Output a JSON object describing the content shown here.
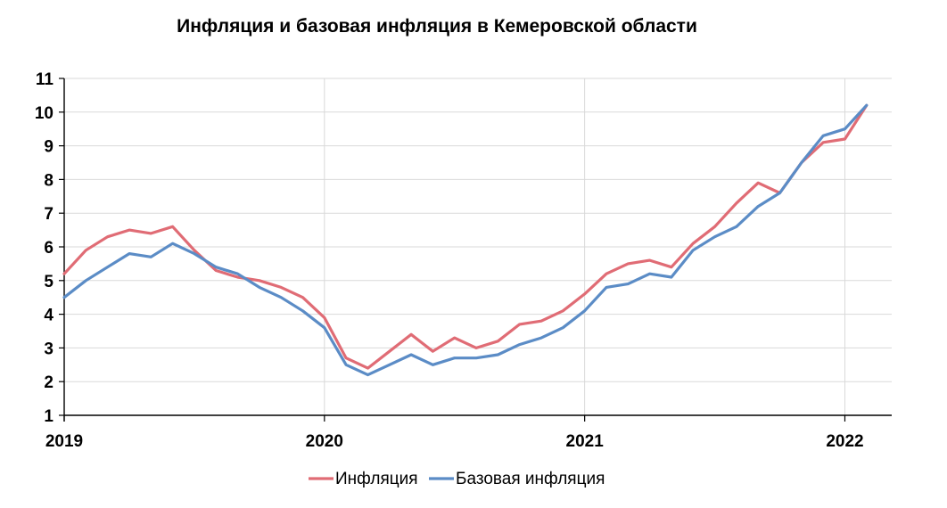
{
  "chart_data": {
    "type": "line",
    "title": "Инфляция и базовая инфляция в Кемеровской области",
    "x_tick_labels": [
      "2019",
      "2020",
      "2021",
      "2022"
    ],
    "y_tick_labels": [
      "1",
      "2",
      "3",
      "4",
      "5",
      "6",
      "7",
      "8",
      "9",
      "10",
      "11"
    ],
    "ylim": [
      1,
      11
    ],
    "grid": "horizontal and yearly vertical",
    "legend_position": "bottom-center",
    "x_start": "2019-01",
    "x_end": "2022-01",
    "series": [
      {
        "name": "Инфляция",
        "color": "#e06c75",
        "values": [
          5.2,
          5.9,
          6.3,
          6.5,
          6.4,
          6.6,
          5.9,
          5.3,
          5.1,
          5.0,
          4.8,
          4.5,
          3.9,
          2.7,
          2.4,
          2.9,
          3.4,
          2.9,
          3.3,
          3.0,
          3.2,
          3.7,
          3.8,
          4.1,
          4.6,
          5.2,
          5.5,
          5.6,
          5.4,
          6.1,
          6.6,
          7.3,
          7.9,
          7.6,
          8.5,
          9.1,
          9.2,
          10.2
        ]
      },
      {
        "name": "Базовая инфляция",
        "color": "#5b8cc6",
        "values": [
          4.5,
          5.0,
          5.4,
          5.8,
          5.7,
          6.1,
          5.8,
          5.4,
          5.2,
          4.8,
          4.5,
          4.1,
          3.6,
          2.5,
          2.2,
          2.5,
          2.8,
          2.5,
          2.7,
          2.7,
          2.8,
          3.1,
          3.3,
          3.6,
          4.1,
          4.8,
          4.9,
          5.2,
          5.1,
          5.9,
          6.3,
          6.6,
          7.2,
          7.6,
          8.5,
          9.3,
          9.5,
          10.2
        ]
      }
    ]
  }
}
